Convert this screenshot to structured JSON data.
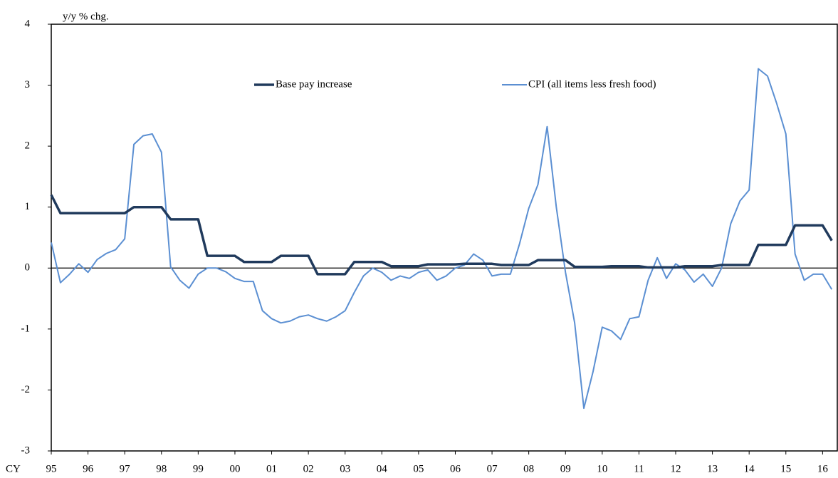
{
  "chart_data": {
    "type": "line",
    "y_label": "y/y % chg.",
    "x_label": "CY",
    "x": [
      1995,
      1995.25,
      1995.5,
      1995.75,
      1996,
      1996.25,
      1996.5,
      1996.75,
      1997,
      1997.25,
      1997.5,
      1997.75,
      1998,
      1998.25,
      1998.5,
      1998.75,
      1999,
      1999.25,
      1999.5,
      1999.75,
      2000,
      2000.25,
      2000.5,
      2000.75,
      2001,
      2001.25,
      2001.5,
      2001.75,
      2002,
      2002.25,
      2002.5,
      2002.75,
      2003,
      2003.25,
      2003.5,
      2003.75,
      2004,
      2004.25,
      2004.5,
      2004.75,
      2005,
      2005.25,
      2005.5,
      2005.75,
      2006,
      2006.25,
      2006.5,
      2006.75,
      2007,
      2007.25,
      2007.5,
      2007.75,
      2008,
      2008.25,
      2008.5,
      2008.75,
      2009,
      2009.25,
      2009.5,
      2009.75,
      2010,
      2010.25,
      2010.5,
      2010.75,
      2011,
      2011.25,
      2011.5,
      2011.75,
      2012,
      2012.25,
      2012.5,
      2012.75,
      2013,
      2013.25,
      2013.5,
      2013.75,
      2014,
      2014.25,
      2014.5,
      2014.75,
      2015,
      2015.25,
      2015.5,
      2015.75,
      2016,
      2016.25
    ],
    "series": [
      {
        "name": "Base pay increase",
        "color": "#203a5c",
        "width": 3.5,
        "values": [
          1.2,
          0.9,
          0.9,
          0.9,
          0.9,
          0.9,
          0.9,
          0.9,
          0.9,
          1.0,
          1.0,
          1.0,
          1.0,
          0.8,
          0.8,
          0.8,
          0.8,
          0.2,
          0.2,
          0.2,
          0.2,
          0.1,
          0.1,
          0.1,
          0.1,
          0.2,
          0.2,
          0.2,
          0.2,
          -0.1,
          -0.1,
          -0.1,
          -0.1,
          0.1,
          0.1,
          0.1,
          0.1,
          0.03,
          0.03,
          0.03,
          0.03,
          0.06,
          0.06,
          0.06,
          0.06,
          0.07,
          0.07,
          0.07,
          0.07,
          0.05,
          0.05,
          0.05,
          0.05,
          0.13,
          0.13,
          0.13,
          0.13,
          0.02,
          0.02,
          0.02,
          0.02,
          0.03,
          0.03,
          0.03,
          0.03,
          0.01,
          0.01,
          0.01,
          0.01,
          0.03,
          0.03,
          0.03,
          0.03,
          0.05,
          0.05,
          0.05,
          0.05,
          0.38,
          0.38,
          0.38,
          0.38,
          0.7,
          0.7,
          0.7,
          0.7,
          0.45
        ]
      },
      {
        "name": "CPI (all items less fresh food)",
        "color": "#5b8fd2",
        "width": 2,
        "values": [
          0.42,
          -0.24,
          -0.1,
          0.07,
          -0.07,
          0.14,
          0.24,
          0.3,
          0.48,
          2.03,
          2.17,
          2.2,
          1.9,
          0.02,
          -0.2,
          -0.33,
          -0.1,
          0.0,
          0.0,
          -0.06,
          -0.17,
          -0.22,
          -0.22,
          -0.7,
          -0.83,
          -0.9,
          -0.87,
          -0.8,
          -0.77,
          -0.83,
          -0.87,
          -0.8,
          -0.7,
          -0.4,
          -0.13,
          0.0,
          -0.07,
          -0.2,
          -0.13,
          -0.17,
          -0.07,
          -0.03,
          -0.2,
          -0.13,
          0.0,
          0.05,
          0.23,
          0.13,
          -0.13,
          -0.1,
          -0.1,
          0.4,
          0.98,
          1.37,
          2.32,
          1.0,
          -0.07,
          -0.9,
          -2.3,
          -1.7,
          -0.97,
          -1.03,
          -1.17,
          -0.83,
          -0.8,
          -0.2,
          0.17,
          -0.17,
          0.07,
          -0.03,
          -0.23,
          -0.1,
          -0.3,
          0.0,
          0.73,
          1.1,
          1.28,
          3.27,
          3.15,
          2.7,
          2.2,
          0.23,
          -0.2,
          -0.1,
          -0.1,
          -0.35
        ]
      }
    ],
    "xlim": [
      1995,
      2016.4
    ],
    "ylim": [
      -3,
      4
    ],
    "yticks": [
      4,
      3,
      2,
      1,
      0,
      -1,
      -2,
      -3
    ],
    "xticks": [
      {
        "value": 1995,
        "label": "95"
      },
      {
        "value": 1996,
        "label": "96"
      },
      {
        "value": 1997,
        "label": "97"
      },
      {
        "value": 1998,
        "label": "98"
      },
      {
        "value": 1999,
        "label": "99"
      },
      {
        "value": 2000,
        "label": "00"
      },
      {
        "value": 2001,
        "label": "01"
      },
      {
        "value": 2002,
        "label": "02"
      },
      {
        "value": 2003,
        "label": "03"
      },
      {
        "value": 2004,
        "label": "04"
      },
      {
        "value": 2005,
        "label": "05"
      },
      {
        "value": 2006,
        "label": "06"
      },
      {
        "value": 2007,
        "label": "07"
      },
      {
        "value": 2008,
        "label": "08"
      },
      {
        "value": 2009,
        "label": "09"
      },
      {
        "value": 2010,
        "label": "10"
      },
      {
        "value": 2011,
        "label": "11"
      },
      {
        "value": 2012,
        "label": "12"
      },
      {
        "value": 2013,
        "label": "13"
      },
      {
        "value": 2014,
        "label": "14"
      },
      {
        "value": 2015,
        "label": "15"
      },
      {
        "value": 2016,
        "label": "16"
      }
    ],
    "hline": 0,
    "grid": false
  }
}
